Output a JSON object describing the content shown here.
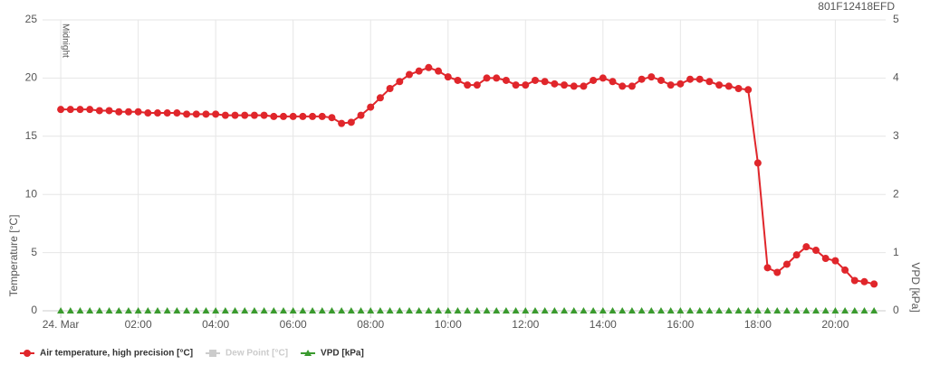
{
  "chart_data": {
    "type": "line",
    "device": "801F12418EFD",
    "annotation": "Midnight",
    "y_label": "Temperature [°C]",
    "y2_label": "VPD [kPa]",
    "x": [
      0,
      0.25,
      0.5,
      0.75,
      1,
      1.25,
      1.5,
      1.75,
      2,
      2.25,
      2.5,
      2.75,
      3,
      3.25,
      3.5,
      3.75,
      4,
      4.25,
      4.5,
      4.75,
      5,
      5.25,
      5.5,
      5.75,
      6,
      6.25,
      6.5,
      6.75,
      7,
      7.25,
      7.5,
      7.75,
      8,
      8.25,
      8.5,
      8.75,
      9,
      9.25,
      9.5,
      9.75,
      10,
      10.25,
      10.5,
      10.75,
      11,
      11.25,
      11.5,
      11.75,
      12,
      12.25,
      12.5,
      12.75,
      13,
      13.25,
      13.5,
      13.75,
      14,
      14.25,
      14.5,
      14.75,
      15,
      15.25,
      15.5,
      15.75,
      16,
      16.25,
      16.5,
      16.75,
      17,
      17.25,
      17.5,
      17.75,
      18,
      18.25,
      18.5,
      18.75,
      19,
      19.25,
      19.5,
      19.75,
      20,
      20.25,
      20.5,
      20.75,
      21
    ],
    "xlim": [
      -0.47,
      21.3
    ],
    "xticks": [
      {
        "value": 0,
        "label": "24. Mar"
      },
      {
        "value": 2,
        "label": "02:00"
      },
      {
        "value": 4,
        "label": "04:00"
      },
      {
        "value": 6,
        "label": "06:00"
      },
      {
        "value": 8,
        "label": "08:00"
      },
      {
        "value": 10,
        "label": "10:00"
      },
      {
        "value": 12,
        "label": "12:00"
      },
      {
        "value": 14,
        "label": "14:00"
      },
      {
        "value": 16,
        "label": "16:00"
      },
      {
        "value": 18,
        "label": "18:00"
      },
      {
        "value": 20,
        "label": "20:00"
      }
    ],
    "ylim": [
      0,
      25
    ],
    "yticks": [
      0,
      5,
      10,
      15,
      20,
      25
    ],
    "y2lim": [
      0,
      5
    ],
    "y2ticks": [
      0,
      1,
      2,
      3,
      4,
      5
    ],
    "grid": true,
    "series": [
      {
        "name": "Air temperature, high precision [°C]",
        "color": "#e0262b",
        "marker": "circle",
        "values": [
          17.3,
          17.3,
          17.3,
          17.3,
          17.2,
          17.2,
          17.1,
          17.1,
          17.1,
          17.0,
          17.0,
          17.0,
          17.0,
          16.9,
          16.9,
          16.9,
          16.9,
          16.8,
          16.8,
          16.8,
          16.8,
          16.8,
          16.7,
          16.7,
          16.7,
          16.7,
          16.7,
          16.7,
          16.6,
          16.1,
          16.2,
          16.8,
          17.5,
          18.3,
          19.1,
          19.7,
          20.3,
          20.6,
          20.9,
          20.6,
          20.1,
          19.8,
          19.4,
          19.4,
          20.0,
          20.0,
          19.8,
          19.4,
          19.4,
          19.8,
          19.7,
          19.5,
          19.4,
          19.3,
          19.3,
          19.8,
          20.0,
          19.7,
          19.3,
          19.3,
          19.9,
          20.1,
          19.8,
          19.4,
          19.5,
          19.9,
          19.9,
          19.7,
          19.4,
          19.3,
          19.1,
          19.0,
          12.7,
          3.7,
          3.3,
          4.0,
          4.8,
          5.5,
          5.2,
          4.5,
          4.3,
          3.5,
          2.6,
          2.5,
          2.3
        ]
      },
      {
        "name": "Dew Point [°C]",
        "color": "#cccccc",
        "marker": "square",
        "visible": false
      },
      {
        "name": "VPD [kPa]",
        "color": "#3a9a2e",
        "marker": "triangle",
        "axis": "y2",
        "values": [
          0,
          0,
          0,
          0,
          0,
          0,
          0,
          0,
          0,
          0,
          0,
          0,
          0,
          0,
          0,
          0,
          0,
          0,
          0,
          0,
          0,
          0,
          0,
          0,
          0,
          0,
          0,
          0,
          0,
          0,
          0,
          0,
          0,
          0,
          0,
          0,
          0,
          0,
          0,
          0,
          0,
          0,
          0,
          0,
          0,
          0,
          0,
          0,
          0,
          0,
          0,
          0,
          0,
          0,
          0,
          0,
          0,
          0,
          0,
          0,
          0,
          0,
          0,
          0,
          0,
          0,
          0,
          0,
          0,
          0,
          0,
          0,
          0,
          0,
          0,
          0,
          0,
          0,
          0,
          0,
          0,
          0,
          0,
          0,
          0
        ]
      }
    ]
  }
}
